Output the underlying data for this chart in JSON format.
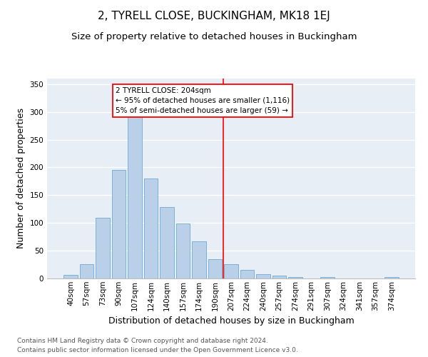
{
  "title": "2, TYRELL CLOSE, BUCKINGHAM, MK18 1EJ",
  "subtitle": "Size of property relative to detached houses in Buckingham",
  "xlabel": "Distribution of detached houses by size in Buckingham",
  "ylabel": "Number of detached properties",
  "footnote1": "Contains HM Land Registry data © Crown copyright and database right 2024.",
  "footnote2": "Contains public sector information licensed under the Open Government Licence v3.0.",
  "bar_labels": [
    "40sqm",
    "57sqm",
    "73sqm",
    "90sqm",
    "107sqm",
    "124sqm",
    "140sqm",
    "157sqm",
    "174sqm",
    "190sqm",
    "207sqm",
    "224sqm",
    "240sqm",
    "257sqm",
    "274sqm",
    "291sqm",
    "307sqm",
    "324sqm",
    "341sqm",
    "357sqm",
    "374sqm"
  ],
  "bar_values": [
    6,
    26,
    109,
    195,
    291,
    180,
    128,
    99,
    67,
    35,
    26,
    16,
    8,
    5,
    3,
    0,
    2,
    0,
    0,
    0,
    2
  ],
  "bar_color": "#bad0e8",
  "bar_edgecolor": "#6aaad4",
  "ylim": [
    0,
    360
  ],
  "yticks": [
    0,
    50,
    100,
    150,
    200,
    250,
    300,
    350
  ],
  "pct_smaller": 95,
  "n_smaller": 1116,
  "pct_larger": 5,
  "n_larger": 59,
  "bg_color": "#e8eef5",
  "grid_color": "#ffffff",
  "title_fontsize": 11,
  "subtitle_fontsize": 9.5,
  "axis_label_fontsize": 9,
  "tick_fontsize": 7.5,
  "footnote_fontsize": 6.5
}
